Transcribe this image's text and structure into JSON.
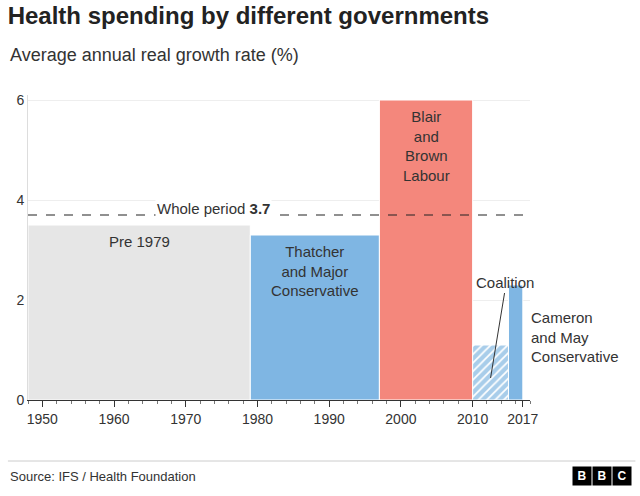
{
  "chart_data": {
    "type": "bar",
    "title": "Health spending by different governments",
    "subtitle": "Average annual real growth rate (%)",
    "source": "Source: IFS / Health Foundation",
    "logo": "BBC",
    "series": [
      {
        "name": "Pre 1979",
        "start": 1948,
        "end": 1979,
        "values": [
          3.5
        ],
        "color": "#e6e6e6"
      },
      {
        "name": "Thatcher\nand Major\nConservative",
        "start": 1979,
        "end": 1997,
        "values": [
          3.3
        ],
        "color": "#7fb6e3"
      },
      {
        "name": "Blair\nand\nBrown\nLabour",
        "start": 1997,
        "end": 2010,
        "values": [
          6.0
        ],
        "color": "#f4877c"
      },
      {
        "name": "Coalition",
        "start": 2010,
        "end": 2015,
        "values": [
          1.1
        ],
        "color": "#a8cdea",
        "marker": "hatched"
      },
      {
        "name": "Cameron\nand May\nConservative",
        "start": 2015,
        "end": 2017,
        "values": [
          2.3
        ],
        "color": "#7fb6e3"
      }
    ],
    "reference_line": {
      "label": "Whole period",
      "value": 3.7
    },
    "xlim": [
      1948,
      2018
    ],
    "xticks": [
      1950,
      1960,
      1970,
      1980,
      1990,
      2000,
      2010,
      2017
    ],
    "ylim": [
      0,
      6.1
    ],
    "yticks": [
      0,
      2,
      4,
      6
    ],
    "grid": true
  }
}
